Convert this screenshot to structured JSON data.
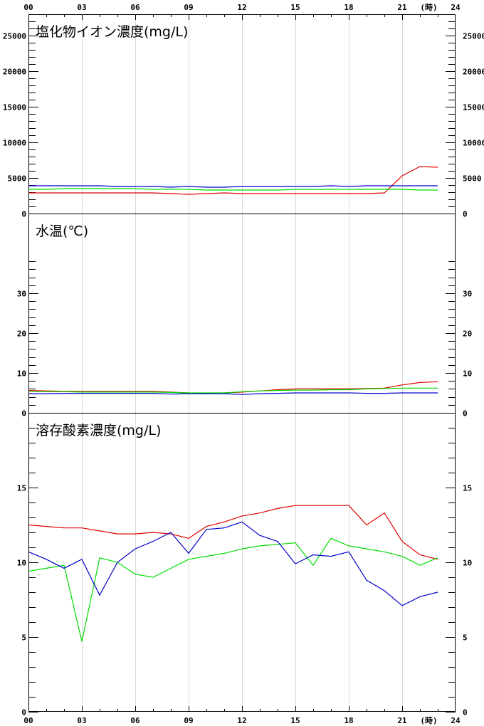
{
  "chart_data": {
    "type": "line",
    "x_axis": {
      "ticks": [
        "00",
        "03",
        "06",
        "09",
        "12",
        "15",
        "18",
        "21",
        "24"
      ],
      "unit_label": "(時)",
      "range": [
        0,
        24
      ]
    },
    "colors": {
      "red": "#e00000",
      "green": "#00dd00",
      "blue": "#0000cc"
    },
    "panels": [
      {
        "id": "chloride",
        "title": "塩化物イオン濃度(mg/L)",
        "ylim": [
          0,
          28000
        ],
        "y_labeled_ticks": [
          0,
          5000,
          10000,
          15000,
          20000,
          25000
        ],
        "y_tick_labels": [
          "0",
          "5000",
          "10000",
          "15000",
          "20000",
          "25000"
        ],
        "minor_step": 1000,
        "series": [
          {
            "color": "red",
            "x": [
              0,
              1,
              2,
              3,
              4,
              5,
              6,
              7,
              8,
              9,
              10,
              11,
              12,
              13,
              14,
              15,
              16,
              17,
              18,
              19,
              20,
              21,
              22,
              23
            ],
            "values": [
              2900,
              2900,
              2900,
              2900,
              2900,
              2900,
              2900,
              2900,
              2800,
              2700,
              2800,
              2900,
              2800,
              2800,
              2800,
              2800,
              2800,
              2800,
              2800,
              2800,
              2900,
              5300,
              6600,
              6500
            ]
          },
          {
            "color": "green",
            "x": [
              0,
              1,
              2,
              3,
              4,
              5,
              6,
              7,
              8,
              9,
              10,
              11,
              12,
              13,
              14,
              15,
              16,
              17,
              18,
              19,
              20,
              21,
              22,
              23
            ],
            "values": [
              3400,
              3400,
              3500,
              3500,
              3500,
              3500,
              3500,
              3400,
              3400,
              3400,
              3300,
              3300,
              3300,
              3300,
              3300,
              3400,
              3400,
              3400,
              3400,
              3400,
              3400,
              3400,
              3300,
              3300
            ]
          },
          {
            "color": "blue",
            "x": [
              0,
              1,
              2,
              3,
              4,
              5,
              6,
              7,
              8,
              9,
              10,
              11,
              12,
              13,
              14,
              15,
              16,
              17,
              18,
              19,
              20,
              21,
              22,
              23
            ],
            "values": [
              3900,
              3900,
              3900,
              3900,
              3900,
              3800,
              3800,
              3800,
              3700,
              3800,
              3700,
              3700,
              3800,
              3800,
              3800,
              3800,
              3800,
              3900,
              3800,
              3900,
              3900,
              3900,
              3900,
              3900
            ]
          }
        ]
      },
      {
        "id": "water_temp",
        "title": "水温(℃)",
        "ylim": [
          0,
          50
        ],
        "y_labeled_ticks": [
          0,
          10,
          20,
          30
        ],
        "y_tick_labels": [
          "0",
          "10",
          "20",
          "30"
        ],
        "minor_step": 2,
        "minor_max": 38,
        "series": [
          {
            "color": "red",
            "x": [
              0,
              1,
              2,
              3,
              4,
              5,
              6,
              7,
              8,
              9,
              10,
              11,
              12,
              13,
              14,
              15,
              16,
              17,
              18,
              19,
              20,
              21,
              22,
              23
            ],
            "values": [
              5.6,
              5.5,
              5.4,
              5.4,
              5.4,
              5.4,
              5.4,
              5.4,
              5.2,
              5.0,
              4.8,
              5.0,
              5.2,
              5.5,
              5.8,
              6.0,
              6.0,
              6.0,
              6.0,
              6.1,
              6.2,
              7.0,
              7.6,
              7.8
            ]
          },
          {
            "color": "green",
            "x": [
              0,
              1,
              2,
              3,
              4,
              5,
              6,
              7,
              8,
              9,
              10,
              11,
              12,
              13,
              14,
              15,
              16,
              17,
              18,
              19,
              20,
              21,
              22,
              23
            ],
            "values": [
              5.4,
              5.3,
              5.3,
              5.2,
              5.2,
              5.2,
              5.2,
              5.2,
              5.1,
              5.0,
              5.0,
              5.0,
              5.3,
              5.5,
              5.6,
              5.7,
              5.7,
              5.8,
              5.8,
              6.0,
              6.1,
              6.2,
              6.2,
              6.2
            ]
          },
          {
            "color": "blue",
            "x": [
              0,
              1,
              2,
              3,
              4,
              5,
              6,
              7,
              8,
              9,
              10,
              11,
              12,
              13,
              14,
              15,
              16,
              17,
              18,
              19,
              20,
              21,
              22,
              23
            ],
            "values": [
              4.8,
              4.8,
              4.9,
              4.9,
              4.9,
              4.9,
              4.9,
              4.9,
              4.7,
              4.8,
              4.8,
              4.8,
              4.6,
              4.8,
              4.9,
              5.0,
              5.0,
              5.0,
              5.0,
              4.9,
              4.9,
              5.0,
              5.0,
              5.0
            ]
          }
        ]
      },
      {
        "id": "dissolved_oxygen",
        "title": "溶存酸素濃度(mg/L)",
        "ylim": [
          0,
          20
        ],
        "y_labeled_ticks": [
          0,
          5,
          10,
          15
        ],
        "y_tick_labels": [
          "0",
          "5",
          "10",
          "15"
        ],
        "minor_step": 1,
        "minor_max": 19,
        "series": [
          {
            "color": "red",
            "x": [
              0,
              1,
              2,
              3,
              4,
              5,
              6,
              7,
              8,
              9,
              10,
              11,
              12,
              13,
              14,
              15,
              16,
              17,
              18,
              19,
              20,
              21,
              22,
              23
            ],
            "values": [
              12.5,
              12.4,
              12.3,
              12.3,
              12.1,
              11.9,
              11.9,
              12.0,
              11.9,
              11.6,
              12.4,
              12.7,
              13.1,
              13.3,
              13.6,
              13.8,
              13.8,
              13.8,
              13.8,
              12.5,
              13.3,
              11.4,
              10.5,
              10.2
            ]
          },
          {
            "color": "green",
            "x": [
              0,
              1,
              2,
              3,
              4,
              5,
              6,
              7,
              8,
              9,
              10,
              11,
              12,
              13,
              14,
              15,
              16,
              17,
              18,
              19,
              20,
              21,
              22,
              23
            ],
            "values": [
              9.4,
              9.6,
              9.8,
              4.7,
              10.3,
              10.0,
              9.2,
              9.0,
              9.6,
              10.2,
              10.4,
              10.6,
              10.9,
              11.1,
              11.2,
              11.3,
              9.8,
              11.6,
              11.1,
              10.9,
              10.7,
              10.4,
              9.8,
              10.3
            ]
          },
          {
            "color": "blue",
            "x": [
              0,
              1,
              2,
              3,
              4,
              5,
              6,
              7,
              8,
              9,
              10,
              11,
              12,
              13,
              14,
              15,
              16,
              17,
              18,
              19,
              20,
              21,
              22,
              23
            ],
            "values": [
              10.7,
              10.2,
              9.6,
              10.2,
              7.8,
              10.0,
              10.9,
              11.4,
              12.0,
              10.6,
              12.2,
              12.3,
              12.7,
              11.8,
              11.4,
              9.9,
              10.5,
              10.4,
              10.7,
              8.8,
              8.1,
              7.1,
              7.7,
              8.0
            ]
          }
        ]
      }
    ]
  }
}
